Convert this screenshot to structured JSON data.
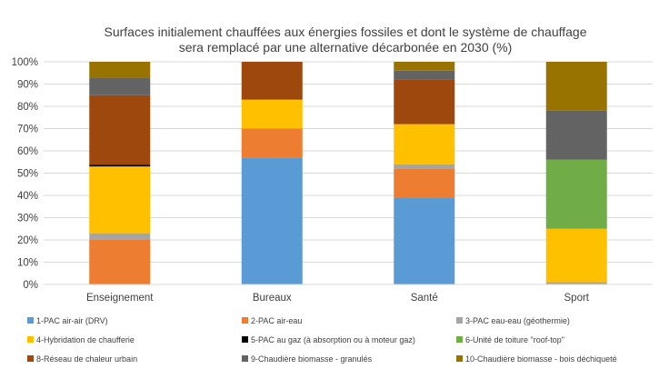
{
  "chart_data": {
    "type": "bar",
    "stacked": true,
    "title_lines": [
      "Surfaces initialement chauffées aux énergies fossiles et dont le système de chauffage",
      "sera remplacé par une alternative décarbonée en 2030 (%)"
    ],
    "xlabel": "",
    "ylabel": "",
    "ylim": [
      0,
      100
    ],
    "yticks": [
      {
        "value": 0,
        "label": "0%"
      },
      {
        "value": 10,
        "label": "10%"
      },
      {
        "value": 20,
        "label": "20%"
      },
      {
        "value": 30,
        "label": "30%"
      },
      {
        "value": 40,
        "label": "40%"
      },
      {
        "value": 50,
        "label": "50%"
      },
      {
        "value": 60,
        "label": "60%"
      },
      {
        "value": 70,
        "label": "70%"
      },
      {
        "value": 80,
        "label": "80%"
      },
      {
        "value": 90,
        "label": "90%"
      },
      {
        "value": 100,
        "label": "100%"
      }
    ],
    "grid": true,
    "legend_position": "bottom",
    "categories": [
      "Enseignement",
      "Bureaux",
      "Santé",
      "Sport"
    ],
    "series": [
      {
        "name": "1-PAC air-air (DRV)",
        "color": "#5B9BD5",
        "values": [
          0,
          57,
          39,
          0
        ]
      },
      {
        "name": "2-PAC air-eau",
        "color": "#ED7D31",
        "values": [
          20,
          13,
          13,
          0
        ]
      },
      {
        "name": "3-PAC eau-eau (géothermie)",
        "color": "#A5A5A5",
        "values": [
          3,
          0,
          2,
          1
        ]
      },
      {
        "name": "4-Hybridation de chaufferie",
        "color": "#FFC000",
        "values": [
          30,
          13,
          18,
          24
        ]
      },
      {
        "name": "5-PAC au gaz (à absorption ou à moteur gaz)",
        "color": "#000000",
        "values": [
          0.8,
          0,
          0,
          0
        ]
      },
      {
        "name": "6-Unité de toiture \"roof-top\"",
        "color": "#70AD47",
        "values": [
          0,
          0,
          0,
          31
        ]
      },
      {
        "name": "8-Réseau de chaleur urbain",
        "color": "#9E480E",
        "values": [
          31.2,
          17,
          20,
          0
        ]
      },
      {
        "name": "9-Chaudière biomasse - granulés",
        "color": "#636363",
        "values": [
          8,
          0,
          4,
          22
        ]
      },
      {
        "name": "10-Chaudière biomasse - bois déchiqueté",
        "color": "#997300",
        "values": [
          7,
          0,
          4,
          22
        ]
      }
    ]
  }
}
